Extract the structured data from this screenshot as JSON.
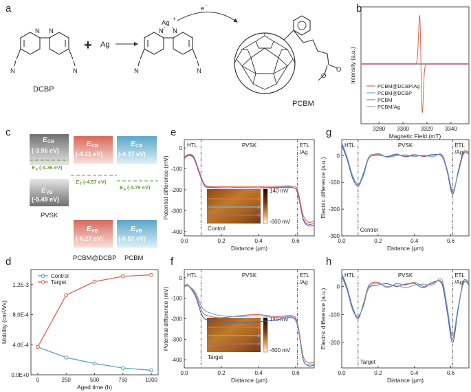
{
  "panels": {
    "a": "a",
    "b": "b",
    "c": "c",
    "d": "d",
    "e": "e",
    "f": "f",
    "g": "g",
    "h": "h"
  },
  "scheme": {
    "dcbp_label": "DCBP",
    "plus": "+",
    "ag": "Ag",
    "ag_ion": "Ag",
    "ag_charge": "+",
    "electron": "e",
    "electron_charge": "-",
    "pcbm_label": "PCBM",
    "n": "N",
    "cn_n": "N",
    "ester_o": "O"
  },
  "panel_b": {
    "chart_data": {
      "type": "line",
      "xlabel": "Magnetic Field (mT)",
      "ylabel": "Intensity (a.u.)",
      "xlim": [
        3265,
        3355
      ],
      "x_ticks": [
        "3280",
        "3300",
        "3320",
        "3340"
      ],
      "x_tick_values": [
        3280,
        3300,
        3320,
        3340
      ],
      "legend": [
        "PCBM@DCBP/Ag",
        "PCBM@DCBP",
        "PCBM",
        "PCBM/Ag"
      ],
      "colors": [
        "#d9634f",
        "#6aaed0",
        "#5a9f8a",
        "#a79ab8"
      ],
      "signal_center_mT": 3315,
      "signal_amplitude": 1.0
    }
  },
  "panel_c": {
    "cb_sub": "CB",
    "vb_sub": "VB",
    "f_sub": "F",
    "e_letter": "E",
    "materials": [
      {
        "name": "PVSK",
        "cb": "(-3.96 eV)",
        "vb": "(-5.49 eV)",
        "ef": "(-4.36 eV)"
      },
      {
        "name": "PCBM@DCBP",
        "cb": "(-4.11 eV)",
        "vb": "(-6.27 eV)",
        "ef": "(-4.57 eV)"
      },
      {
        "name": "PCBM",
        "cb": "(-4.37 eV)",
        "vb": "(-6.53 eV)",
        "ef": "(-4.79 eV)"
      }
    ]
  },
  "panel_d": {
    "chart_data": {
      "type": "line",
      "xlabel": "Aged time (h)",
      "ylabel": "Mobility (cm²/Vs)",
      "x": [
        0,
        250,
        500,
        750,
        1000
      ],
      "ylim": [
        0,
        0.0014
      ],
      "x_ticks": [
        "0",
        "250",
        "500",
        "750",
        "1000"
      ],
      "y_ticks": [
        "0.0E+0",
        "4.0E-4",
        "8.0E-4",
        "1.2E-3"
      ],
      "y_tick_values": [
        0,
        0.0004,
        0.0008,
        0.0012
      ],
      "series": [
        {
          "name": "Control",
          "color": "#5b9fc0",
          "values": [
            0.00037,
            0.00023,
            0.00015,
            9e-05,
            6e-05
          ]
        },
        {
          "name": "Target",
          "color": "#d9634f",
          "values": [
            0.00037,
            0.00106,
            0.00124,
            0.00131,
            0.00133
          ]
        }
      ]
    }
  },
  "panel_e": {
    "chart_data": {
      "type": "line",
      "xlabel": "Distance (μm)",
      "ylabel": "Potential difference (mV)",
      "xlim": [
        0,
        0.7
      ],
      "ylim": [
        -420,
        40
      ],
      "x_ticks": [
        "0.0",
        "0.2",
        "0.4",
        "0.6"
      ],
      "x_tick_values": [
        0,
        0.2,
        0.4,
        0.6
      ],
      "y_ticks": [
        "0",
        "-100",
        "-200",
        "-300",
        "-400"
      ],
      "y_tick_values": [
        0,
        -100,
        -200,
        -300,
        -400
      ],
      "regions": [
        "HTL",
        "PVSK",
        "ETL",
        "/Ag"
      ],
      "boundaries": [
        0.09,
        0.61
      ],
      "sample": "Control",
      "colorbar": [
        "140 mV",
        "-600 mV"
      ],
      "series": [
        {
          "name": "line-1",
          "color": "#d9634f",
          "x": [
            0,
            0.02,
            0.05,
            0.08,
            0.11,
            0.15,
            0.2,
            0.3,
            0.4,
            0.5,
            0.58,
            0.61,
            0.64,
            0.67,
            0.7
          ],
          "values": [
            -45,
            -32,
            -40,
            -110,
            -175,
            -185,
            -185,
            -183,
            -184,
            -183,
            -182,
            -200,
            -320,
            -355,
            -348
          ]
        },
        {
          "name": "line-2",
          "color": "#4a63b8",
          "x": [
            0,
            0.02,
            0.05,
            0.08,
            0.11,
            0.15,
            0.2,
            0.3,
            0.4,
            0.5,
            0.58,
            0.61,
            0.64,
            0.67,
            0.7
          ],
          "values": [
            -50,
            -36,
            -45,
            -118,
            -180,
            -188,
            -190,
            -189,
            -190,
            -188,
            -188,
            -215,
            -340,
            -372,
            -368
          ]
        },
        {
          "name": "line-3",
          "color": "#9e63b8",
          "x": [
            0,
            0.02,
            0.05,
            0.08,
            0.11,
            0.15,
            0.2,
            0.3,
            0.4,
            0.5,
            0.58,
            0.61,
            0.64,
            0.67,
            0.7
          ],
          "values": [
            -52,
            -38,
            -48,
            -120,
            -182,
            -190,
            -191,
            -190,
            -191,
            -190,
            -190,
            -210,
            -335,
            -365,
            -360
          ]
        }
      ]
    }
  },
  "panel_f": {
    "chart_data": {
      "type": "line",
      "xlabel": "Distance (μm)",
      "ylabel": "Potential difference (mV)",
      "xlim": [
        0,
        0.7
      ],
      "ylim": [
        -440,
        40
      ],
      "x_ticks": [
        "0.0",
        "0.2",
        "0.4",
        "0.6"
      ],
      "x_tick_values": [
        0,
        0.2,
        0.4,
        0.6
      ],
      "y_ticks": [
        "0",
        "-100",
        "-200",
        "-300",
        "-400"
      ],
      "y_tick_values": [
        0,
        -100,
        -200,
        -300,
        -400
      ],
      "regions": [
        "HTL",
        "PVSK",
        "ETL",
        "/Ag"
      ],
      "boundaries": [
        0.09,
        0.61
      ],
      "sample": "Target",
      "colorbar": [
        "140 mV",
        "-600 mV"
      ],
      "series": [
        {
          "name": "line-1",
          "color": "#d9634f",
          "x": [
            0,
            0.02,
            0.06,
            0.1,
            0.15,
            0.2,
            0.3,
            0.4,
            0.5,
            0.58,
            0.61,
            0.64,
            0.67,
            0.7
          ],
          "values": [
            -40,
            -35,
            -80,
            -170,
            -190,
            -195,
            -185,
            -180,
            -190,
            -185,
            -220,
            -380,
            -415,
            -410
          ]
        },
        {
          "name": "line-2",
          "color": "#4a63b8",
          "x": [
            0,
            0.02,
            0.06,
            0.1,
            0.15,
            0.2,
            0.3,
            0.4,
            0.5,
            0.58,
            0.61,
            0.64,
            0.67,
            0.7
          ],
          "values": [
            -42,
            -38,
            -90,
            -190,
            -210,
            -215,
            -220,
            -215,
            -205,
            -195,
            -235,
            -395,
            -430,
            -425
          ]
        },
        {
          "name": "line-3",
          "color": "#6aa3c8",
          "x": [
            0,
            0.02,
            0.06,
            0.1,
            0.15,
            0.2,
            0.3,
            0.4,
            0.5,
            0.58,
            0.61,
            0.64,
            0.67,
            0.7
          ],
          "values": [
            -45,
            -40,
            -70,
            -150,
            -175,
            -185,
            -190,
            -185,
            -195,
            -190,
            -230,
            -400,
            -425,
            -420
          ]
        }
      ]
    }
  },
  "panel_g": {
    "chart_data": {
      "type": "line",
      "xlabel": "Distance (μm)",
      "ylabel": "Electric difference (a.u.)",
      "xlim": [
        0,
        0.7
      ],
      "ylim": [
        -300,
        60
      ],
      "x_ticks": [
        "0.0",
        "0.2",
        "0.4",
        "0.6"
      ],
      "x_tick_values": [
        0,
        0.2,
        0.4,
        0.6
      ],
      "y_ticks": [
        "0",
        "-100",
        "-200",
        "-300"
      ],
      "y_tick_values": [
        0,
        -100,
        -200,
        -300
      ],
      "regions": [
        "HTL",
        "PVSK",
        "ETL",
        "/Ag"
      ],
      "boundaries": [
        0.09,
        0.61
      ],
      "sample": "Control",
      "series": [
        {
          "name": "line-1",
          "color": "#d9634f",
          "x": [
            0,
            0.03,
            0.06,
            0.09,
            0.12,
            0.15,
            0.2,
            0.25,
            0.3,
            0.35,
            0.4,
            0.45,
            0.5,
            0.55,
            0.58,
            0.61,
            0.64,
            0.67,
            0.7
          ],
          "values": [
            45,
            -10,
            -80,
            -115,
            -70,
            -5,
            5,
            -5,
            3,
            -2,
            4,
            -3,
            2,
            0,
            -60,
            -145,
            -60,
            15,
            10
          ]
        },
        {
          "name": "line-2",
          "color": "#4a63b8",
          "x": [
            0,
            0.03,
            0.06,
            0.09,
            0.12,
            0.15,
            0.2,
            0.25,
            0.3,
            0.35,
            0.4,
            0.45,
            0.5,
            0.55,
            0.58,
            0.61,
            0.64,
            0.67,
            0.7
          ],
          "values": [
            40,
            -15,
            -85,
            -110,
            -65,
            -8,
            2,
            -3,
            6,
            -4,
            2,
            -2,
            4,
            -2,
            -55,
            -140,
            -65,
            10,
            5
          ]
        },
        {
          "name": "line-3",
          "color": "#6aa3c8",
          "x": [
            0,
            0.03,
            0.06,
            0.09,
            0.12,
            0.15,
            0.2,
            0.25,
            0.3,
            0.35,
            0.4,
            0.45,
            0.5,
            0.55,
            0.58,
            0.61,
            0.64,
            0.67,
            0.7
          ],
          "values": [
            50,
            -5,
            -75,
            -105,
            -75,
            -10,
            8,
            -6,
            0,
            3,
            -3,
            2,
            -4,
            5,
            -50,
            -130,
            -70,
            5,
            15
          ]
        }
      ]
    }
  },
  "panel_h": {
    "chart_data": {
      "type": "line",
      "xlabel": "Distance (μm)",
      "ylabel": "Electric difference (a.u.)",
      "xlim": [
        0,
        0.7
      ],
      "ylim": [
        -290,
        60
      ],
      "x_ticks": [
        "0.0",
        "0.2",
        "0.4",
        "0.6"
      ],
      "x_tick_values": [
        0,
        0.2,
        0.4,
        0.6
      ],
      "y_ticks": [
        "0",
        "-100",
        "-200"
      ],
      "y_tick_values": [
        0,
        -100,
        -200
      ],
      "regions": [
        "HTL",
        "PVSK",
        "ETL",
        "/Ag"
      ],
      "boundaries": [
        0.09,
        0.61
      ],
      "sample": "Target",
      "series": [
        {
          "name": "line-1",
          "color": "#d9634f",
          "x": [
            0,
            0.03,
            0.06,
            0.09,
            0.12,
            0.15,
            0.2,
            0.25,
            0.3,
            0.35,
            0.4,
            0.45,
            0.5,
            0.55,
            0.58,
            0.61,
            0.64,
            0.67,
            0.7
          ],
          "values": [
            40,
            -10,
            -80,
            -115,
            -60,
            5,
            15,
            -5,
            10,
            5,
            15,
            0,
            10,
            15,
            -80,
            -185,
            -80,
            20,
            10
          ]
        },
        {
          "name": "line-2",
          "color": "#4a63b8",
          "x": [
            0,
            0.03,
            0.06,
            0.09,
            0.12,
            0.15,
            0.2,
            0.25,
            0.3,
            0.35,
            0.4,
            0.45,
            0.5,
            0.55,
            0.58,
            0.61,
            0.64,
            0.67,
            0.7
          ],
          "values": [
            45,
            -5,
            -75,
            -110,
            -65,
            -5,
            5,
            10,
            0,
            8,
            10,
            -5,
            15,
            10,
            -90,
            -200,
            -85,
            15,
            5
          ]
        },
        {
          "name": "line-3",
          "color": "#6aa3c8",
          "x": [
            0,
            0.03,
            0.06,
            0.09,
            0.12,
            0.15,
            0.2,
            0.25,
            0.3,
            0.35,
            0.4,
            0.45,
            0.5,
            0.55,
            0.58,
            0.61,
            0.64,
            0.67,
            0.7
          ],
          "values": [
            35,
            -15,
            -85,
            -105,
            -70,
            0,
            10,
            0,
            5,
            -5,
            5,
            8,
            5,
            25,
            -70,
            -175,
            -75,
            10,
            20
          ]
        }
      ]
    }
  }
}
